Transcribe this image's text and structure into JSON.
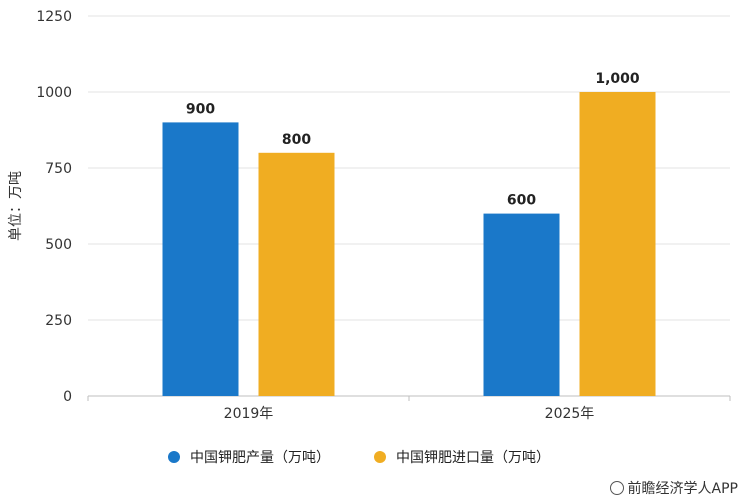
{
  "chart_data": {
    "type": "bar",
    "categories": [
      "2019年",
      "2025年"
    ],
    "series": [
      {
        "name": "中国钾肥产量（万吨）",
        "values": [
          900,
          600
        ],
        "color": "#1a78c9",
        "labels": [
          "900",
          "600"
        ]
      },
      {
        "name": "中国钾肥进口量（万吨）",
        "values": [
          800,
          1000
        ],
        "color": "#f0ad22",
        "labels": [
          "800",
          "1,000"
        ]
      }
    ],
    "ylabel": "单位：万吨",
    "ylim": [
      0,
      1250
    ],
    "yticks": [
      0,
      250,
      500,
      750,
      1000,
      1250
    ],
    "grid": true,
    "legend_position": "bottom"
  },
  "watermark": {
    "text": "前瞻经济学人APP"
  }
}
